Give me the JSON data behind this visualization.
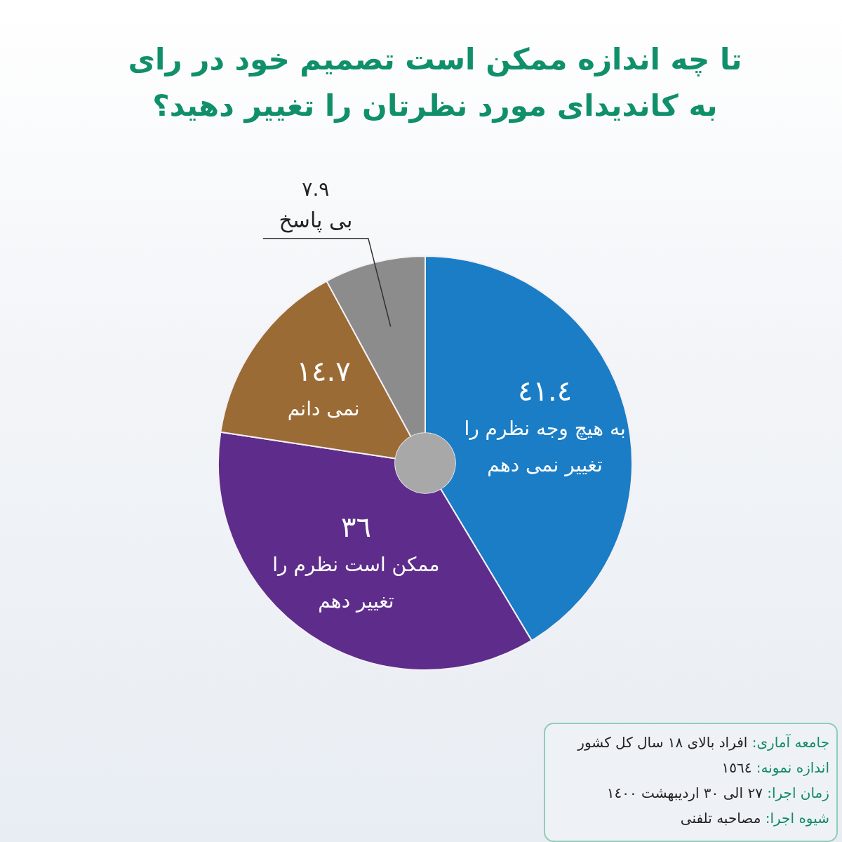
{
  "chart_data": {
    "type": "donut",
    "title": "تا چه اندازه ممکن است تصمیم خود در رای به کاندیدای مورد نظرتان را تغییر دهید؟",
    "categories": [
      "به هیچ وجه نظرم را تغییر نمی دهم",
      "ممکن است نظرم را تغییر دهم",
      "نمی دانم",
      "بی پاسخ"
    ],
    "values": [
      41.4,
      36,
      14.7,
      7.9
    ],
    "colors": [
      "#1a7dc6",
      "#5e2d8c",
      "#9b6b35",
      "#8c8c8c"
    ],
    "value_labels": [
      "٤١.٤",
      "٣٦",
      "١٤.٧",
      "٧.٩"
    ],
    "annotations": [
      "جامعه آماری: افراد بالای ١٨ سال کل کشور",
      "اندازه نمونه: ١٥٦٤",
      "زمان اجرا: ٢٧ الی ٣٠ اردیبهشت ١٤٠٠",
      "شیوه اجرا: مصاحبه تلفنی"
    ]
  }
}
